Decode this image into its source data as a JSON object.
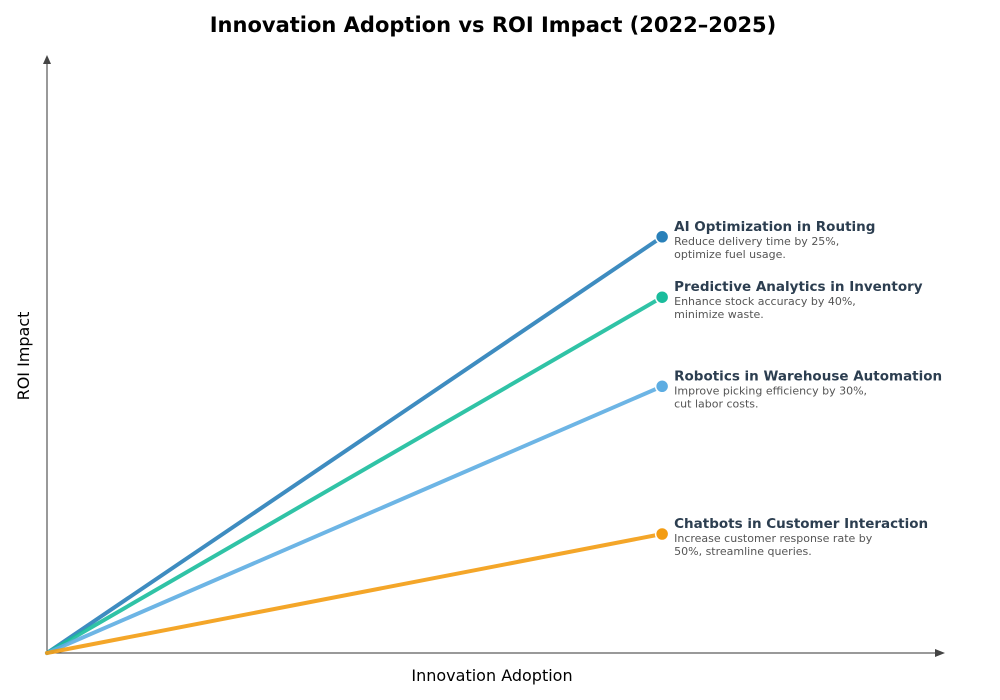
{
  "chart_data": {
    "type": "line",
    "title": "Innovation Adoption vs ROI Impact (2022–2025)",
    "xlabel": "Innovation Adoption",
    "ylabel": "ROI Impact",
    "xlim": [
      0,
      10
    ],
    "ylim": [
      0,
      10
    ],
    "grid": false,
    "ticks": false,
    "series": [
      {
        "name": "AI Optimization in Routing",
        "description": [
          "Reduce delivery time by 25%,",
          "optimize fuel usage."
        ],
        "color": "#2980b9",
        "x": [
          0,
          6.85
        ],
        "y": [
          0,
          6.96
        ]
      },
      {
        "name": "Predictive Analytics in Inventory",
        "description": [
          "Enhance stock accuracy by 40%,",
          "minimize waste."
        ],
        "color": "#1abc9c",
        "x": [
          0,
          6.85
        ],
        "y": [
          0,
          5.95
        ]
      },
      {
        "name": "Robotics in Warehouse Automation",
        "description": [
          "Improve picking efficiency by 30%,",
          "cut labor costs."
        ],
        "color": "#5dade2",
        "x": [
          0,
          6.85
        ],
        "y": [
          0,
          4.46
        ]
      },
      {
        "name": "Chatbots in Customer Interaction",
        "description": [
          "Increase customer response rate by",
          "50%, streamline queries."
        ],
        "color": "#f39c12",
        "x": [
          0,
          6.85
        ],
        "y": [
          0,
          1.99
        ]
      }
    ]
  }
}
